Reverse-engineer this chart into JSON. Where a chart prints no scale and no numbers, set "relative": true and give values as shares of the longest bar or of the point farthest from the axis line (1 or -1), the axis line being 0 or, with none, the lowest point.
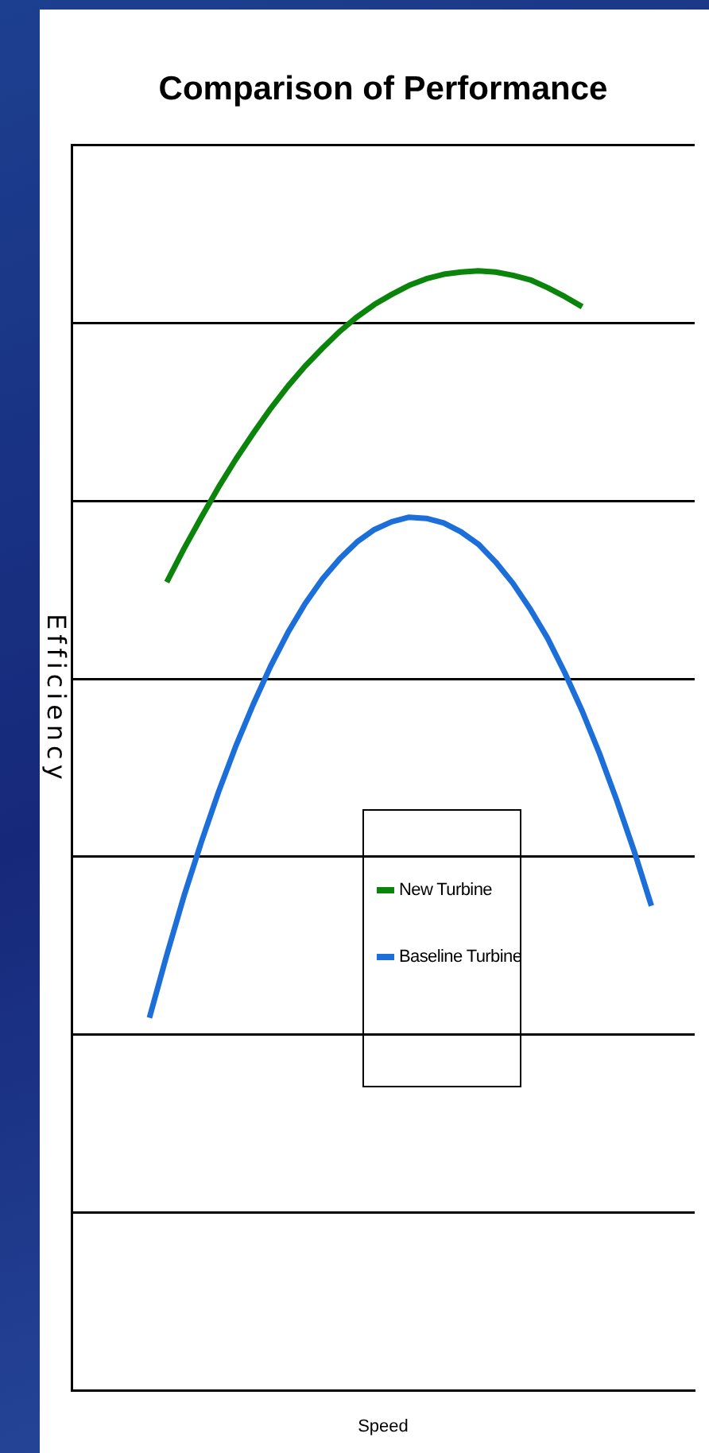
{
  "chart_data": {
    "type": "line",
    "title": "Comparison of Performance",
    "xlabel": "Speed",
    "ylabel": "Efficiency",
    "relative": true,
    "grid": "y",
    "legend": "center",
    "marker": "none",
    "line_style": "solid",
    "categories": [
      null,
      null,
      null,
      null,
      null,
      null,
      null,
      null,
      null,
      null,
      null,
      null,
      null,
      null,
      null,
      null,
      null,
      null,
      null,
      null,
      null,
      null,
      null,
      null,
      null,
      null,
      null,
      null,
      null,
      null,
      null,
      null,
      null,
      null,
      null,
      null
    ],
    "series": [
      {
        "name": "New Turbine",
        "color": "#0b840b",
        "values": [
          null,
          null,
          null,
          null,
          null,
          0.722,
          0.752,
          0.78,
          0.807,
          0.832,
          0.855,
          0.877,
          0.897,
          0.915,
          0.931,
          0.946,
          0.959,
          0.97,
          0.979,
          0.987,
          0.993,
          0.997,
          0.999,
          1.0,
          0.999,
          0.996,
          0.992,
          0.985,
          0.977,
          0.968,
          null,
          null,
          null,
          null,
          null,
          null
        ]
      },
      {
        "name": "Baseline Turbine",
        "color": "#1c6fd8",
        "values": [
          null,
          null,
          null,
          null,
          0.333,
          0.389,
          0.442,
          0.49,
          0.535,
          0.576,
          0.613,
          0.647,
          0.677,
          0.703,
          0.725,
          0.743,
          0.758,
          0.769,
          0.776,
          0.78,
          0.779,
          0.775,
          0.767,
          0.756,
          0.74,
          0.721,
          0.698,
          0.672,
          0.641,
          0.607,
          0.569,
          0.527,
          0.482,
          0.433,
          null,
          null
        ]
      }
    ]
  }
}
